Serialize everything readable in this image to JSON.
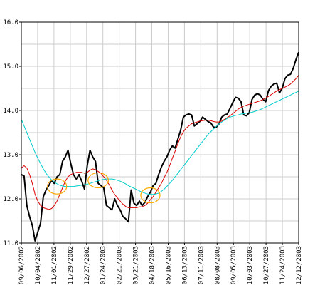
{
  "chart_data": {
    "type": "line",
    "title": "",
    "xlabel": "",
    "ylabel": "",
    "ylim": [
      11.0,
      16.0
    ],
    "yticks": [
      "11.0",
      "12.0",
      "13.0",
      "14.0",
      "15.0",
      "16.0"
    ],
    "xtick_labels": [
      "09/06/2002",
      "10/04/2002",
      "11/01/2002",
      "11/29/2002",
      "12/27/2002",
      "01/24/2003",
      "02/21/2003",
      "03/21/2003",
      "04/18/2003",
      "05/16/2003",
      "06/13/2003",
      "07/11/2003",
      "08/08/2003",
      "09/05/2003",
      "10/03/2003",
      "10/27/2003",
      "11/24/2003",
      "12/12/2003"
    ],
    "grid": true,
    "legend": "none",
    "series": [
      {
        "color": "#000000",
        "values": [
          12.55,
          12.52,
          11.85,
          11.6,
          11.4,
          11.05,
          11.25,
          11.45,
          12.05,
          12.2,
          12.3,
          12.42,
          12.35,
          12.5,
          12.55,
          12.85,
          12.95,
          13.1,
          12.8,
          12.55,
          12.45,
          12.55,
          12.4,
          12.22,
          12.75,
          13.1,
          12.95,
          12.85,
          12.35,
          12.3,
          12.25,
          11.85,
          11.8,
          11.75,
          12.0,
          11.85,
          11.75,
          11.6,
          11.55,
          11.48,
          12.2,
          11.9,
          11.85,
          11.95,
          11.85,
          11.92,
          12.05,
          12.15,
          12.3,
          12.35,
          12.55,
          12.72,
          12.85,
          12.95,
          13.1,
          13.2,
          13.15,
          13.35,
          13.55,
          13.85,
          13.9,
          13.92,
          13.9,
          13.65,
          13.7,
          13.75,
          13.85,
          13.8,
          13.75,
          13.72,
          13.62,
          13.62,
          13.7,
          13.85,
          13.9,
          13.92,
          14.05,
          14.18,
          14.3,
          14.28,
          14.2,
          13.9,
          13.88,
          13.95,
          14.25,
          14.35,
          14.38,
          14.35,
          14.25,
          14.2,
          14.45,
          14.55,
          14.6,
          14.62,
          14.4,
          14.5,
          14.72,
          14.8,
          14.82,
          14.95,
          15.15,
          15.32
        ]
      },
      {
        "color": "#dd0000",
        "values": [
          12.7,
          12.75,
          12.7,
          12.55,
          12.35,
          12.1,
          11.95,
          11.85,
          11.8,
          11.78,
          11.76,
          11.78,
          11.85,
          11.95,
          12.1,
          12.25,
          12.4,
          12.5,
          12.55,
          12.58,
          12.6,
          12.6,
          12.6,
          12.58,
          12.6,
          12.65,
          12.68,
          12.66,
          12.62,
          12.58,
          12.5,
          12.42,
          12.32,
          12.2,
          12.1,
          12.02,
          11.95,
          11.88,
          11.83,
          11.8,
          11.8,
          11.8,
          11.8,
          11.82,
          11.82,
          11.85,
          11.9,
          11.98,
          12.05,
          12.15,
          12.25,
          12.35,
          12.48,
          12.6,
          12.75,
          12.92,
          13.08,
          13.25,
          13.4,
          13.52,
          13.6,
          13.65,
          13.7,
          13.72,
          13.74,
          13.76,
          13.77,
          13.78,
          13.78,
          13.77,
          13.75,
          13.74,
          13.74,
          13.76,
          13.8,
          13.84,
          13.88,
          13.93,
          13.98,
          14.03,
          14.07,
          14.1,
          14.12,
          14.14,
          14.16,
          14.18,
          14.2,
          14.22,
          14.25,
          14.28,
          14.32,
          14.36,
          14.4,
          14.44,
          14.47,
          14.5,
          14.53,
          14.56,
          14.6,
          14.66,
          14.72,
          14.8
        ]
      },
      {
        "color": "#00cccc",
        "values": [
          13.8,
          13.65,
          13.5,
          13.35,
          13.2,
          13.05,
          12.92,
          12.8,
          12.68,
          12.58,
          12.5,
          12.43,
          12.38,
          12.34,
          12.31,
          12.29,
          12.28,
          12.28,
          12.28,
          12.28,
          12.29,
          12.3,
          12.31,
          12.32,
          12.33,
          12.35,
          12.37,
          12.39,
          12.41,
          12.43,
          12.44,
          12.45,
          12.45,
          12.45,
          12.44,
          12.42,
          12.4,
          12.37,
          12.34,
          12.3,
          12.27,
          12.24,
          12.21,
          12.18,
          12.15,
          12.13,
          12.11,
          12.1,
          12.1,
          12.11,
          12.13,
          12.17,
          12.22,
          12.28,
          12.35,
          12.42,
          12.5,
          12.58,
          12.66,
          12.74,
          12.82,
          12.9,
          12.98,
          13.06,
          13.14,
          13.22,
          13.3,
          13.38,
          13.46,
          13.52,
          13.58,
          13.64,
          13.7,
          13.74,
          13.78,
          13.82,
          13.85,
          13.87,
          13.89,
          13.9,
          13.92,
          13.93,
          13.94,
          13.95,
          13.96,
          13.98,
          14.0,
          14.02,
          14.05,
          14.08,
          14.11,
          14.14,
          14.17,
          14.2,
          14.23,
          14.26,
          14.29,
          14.32,
          14.35,
          14.38,
          14.41,
          14.44
        ]
      }
    ],
    "annotations": [
      {
        "shape": "ellipse",
        "color": "#ffaa00",
        "center_index": 13,
        "center_value": 12.28,
        "rx_points": 3.5,
        "ry_value": 0.17
      },
      {
        "shape": "ellipse",
        "color": "#ffaa00",
        "center_index": 28,
        "center_value": 12.42,
        "rx_points": 3.7,
        "ry_value": 0.17
      },
      {
        "shape": "ellipse",
        "color": "#ffaa00",
        "center_index": 47,
        "center_value": 12.08,
        "rx_points": 3.5,
        "ry_value": 0.17
      }
    ],
    "colors": {
      "grid": "#cccccc",
      "axis": "#000000",
      "background": "#ffffff"
    }
  }
}
